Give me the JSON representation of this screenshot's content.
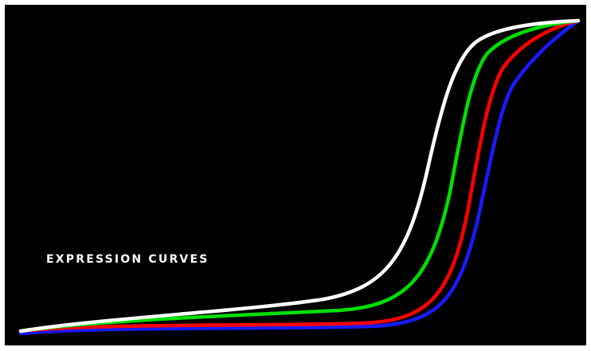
{
  "title": "EXPRESSION CURVES",
  "colors": {
    "background": "#000000",
    "frame_border": "#ffffff",
    "white_curve": "#ffffff",
    "green_curve": "#00e000",
    "red_curve": "#ff0000",
    "blue_curve": "#1a1aff",
    "title_text": "#ffffff"
  },
  "curves": [
    "white",
    "green",
    "red",
    "blue"
  ]
}
